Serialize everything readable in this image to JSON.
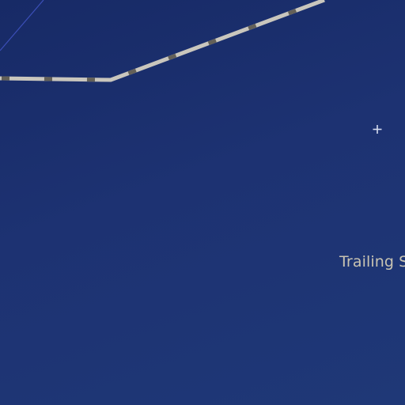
{
  "map": {
    "colors": {
      "background": "#1d3272",
      "road_outline": "#c9c6bd",
      "road_dash": "#636058",
      "river_line": "#3c4fb8",
      "marker": "#d6dcef",
      "label_text": "#c9c4b2"
    },
    "labels": {
      "trailing_label": "Trailing S"
    },
    "markers": [
      {
        "name": "point-marker",
        "icon": "plus-icon"
      }
    ],
    "features": [
      {
        "name": "dashed-trail",
        "style": "dashed-outline"
      },
      {
        "name": "boundary-line",
        "style": "thin-line"
      }
    ]
  }
}
